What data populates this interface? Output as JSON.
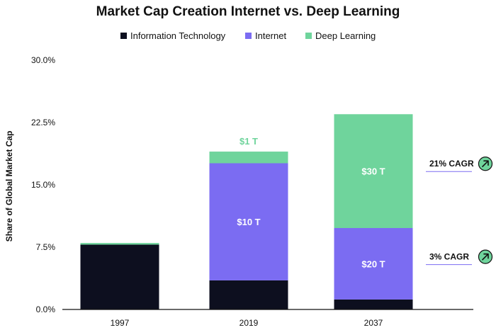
{
  "colors": {
    "information_technology": "#0d0f1f",
    "internet": "#7b6cf2",
    "deep_learning": "#6fd49c",
    "baseline": "#111111",
    "cagr_line": "#7b6cf2",
    "arrow_fill": "#6fd49c"
  },
  "chart_data": {
    "type": "bar",
    "stacked": true,
    "title": "Market Cap Creation Internet vs. Deep Learning",
    "xlabel": "",
    "ylabel": "Share of Global Market Cap",
    "ylim": [
      0,
      30
    ],
    "yticks": [
      0,
      7.5,
      15,
      22.5,
      30
    ],
    "ytick_labels": [
      "0.0%",
      "7.5%",
      "15.0%",
      "22.5%",
      "30.0%"
    ],
    "grid": false,
    "legend_position": "top-center",
    "categories": [
      "1997",
      "2019",
      "2037"
    ],
    "series": [
      {
        "name": "Information Technology",
        "color_key": "information_technology",
        "values": [
          7.8,
          3.5,
          1.2
        ]
      },
      {
        "name": "Internet",
        "color_key": "internet",
        "values": [
          0.0,
          14.1,
          8.6
        ]
      },
      {
        "name": "Deep Learning",
        "color_key": "deep_learning",
        "values": [
          0.2,
          1.4,
          13.7
        ]
      }
    ],
    "segment_labels": [
      {
        "category": "2019",
        "series": "Internet",
        "text": "$10 T"
      },
      {
        "category": "2037",
        "series": "Internet",
        "text": "$20 T"
      },
      {
        "category": "2037",
        "series": "Deep Learning",
        "text": "$30 T"
      }
    ],
    "top_labels": [
      {
        "category": "2019",
        "text": "$1 T",
        "color_key": "deep_learning"
      }
    ],
    "annotations": [
      {
        "category": "2037",
        "series": "Deep Learning",
        "text": "21% CAGR",
        "icon": "arrow-up-right-icon"
      },
      {
        "category": "2037",
        "series": "Internet",
        "text": "3% CAGR",
        "icon": "arrow-up-right-icon"
      }
    ]
  }
}
